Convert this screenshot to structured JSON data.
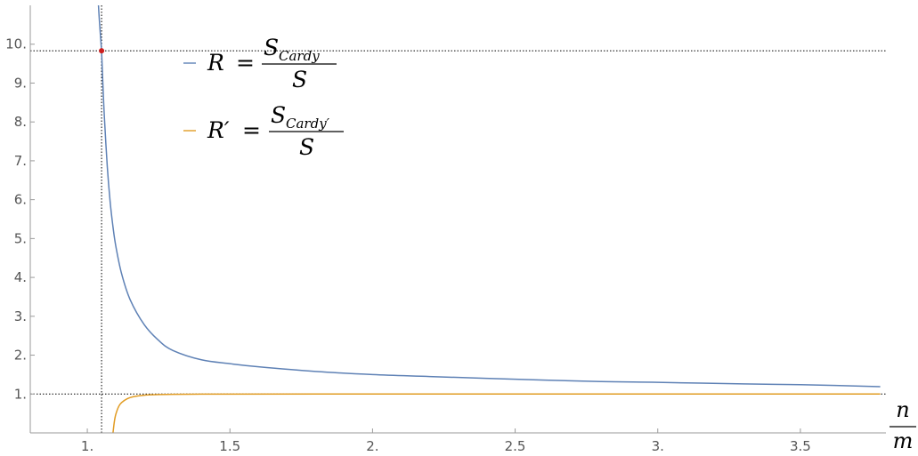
{
  "chart_data": {
    "type": "line",
    "title": "",
    "xlabel": {
      "numerator": "n",
      "denominator": "m"
    },
    "ylabel": "",
    "xlim": [
      0.8,
      3.8
    ],
    "ylim": [
      0,
      11
    ],
    "x_ticks": [
      {
        "value": 1.0,
        "label": "1."
      },
      {
        "value": 1.5,
        "label": "1.5"
      },
      {
        "value": 2.0,
        "label": "2."
      },
      {
        "value": 2.5,
        "label": "2.5"
      },
      {
        "value": 3.0,
        "label": "3."
      },
      {
        "value": 3.5,
        "label": "3.5"
      }
    ],
    "y_ticks": [
      {
        "value": 1,
        "label": "1."
      },
      {
        "value": 2,
        "label": "2."
      },
      {
        "value": 3,
        "label": "3."
      },
      {
        "value": 4,
        "label": "4."
      },
      {
        "value": 5,
        "label": "5."
      },
      {
        "value": 6,
        "label": "6."
      },
      {
        "value": 7,
        "label": "7."
      },
      {
        "value": 8,
        "label": "8."
      },
      {
        "value": 9,
        "label": "9."
      },
      {
        "value": 10,
        "label": "10."
      }
    ],
    "legend_position": "top-left",
    "series": [
      {
        "name": "R = S_Cardy / S",
        "legend": {
          "lhs": "R",
          "numerator_base": "S",
          "numerator_sub": "Cardy",
          "denominator": "S"
        },
        "color": "#5E81B5",
        "x": [
          1.05,
          1.055,
          1.06,
          1.07,
          1.08,
          1.09,
          1.1,
          1.12,
          1.15,
          1.2,
          1.25,
          1.3,
          1.4,
          1.5,
          1.6,
          1.8,
          2.0,
          2.2,
          2.5,
          2.8,
          3.0,
          3.3,
          3.5,
          3.78
        ],
        "y": [
          9.83,
          8.9,
          8.1,
          6.85,
          5.95,
          5.3,
          4.8,
          4.1,
          3.43,
          2.78,
          2.38,
          2.12,
          1.88,
          1.78,
          1.7,
          1.58,
          1.5,
          1.45,
          1.38,
          1.32,
          1.3,
          1.26,
          1.24,
          1.19
        ]
      },
      {
        "name": "R' = S_Cardy' / S",
        "legend": {
          "lhs": "R′",
          "numerator_base": "S",
          "numerator_sub": "Cardy′",
          "denominator": "S"
        },
        "color": "#E19C24",
        "x": [
          1.09,
          1.095,
          1.1,
          1.11,
          1.12,
          1.14,
          1.16,
          1.2,
          1.25,
          1.3,
          1.4,
          1.5,
          2.0,
          2.5,
          3.0,
          3.5,
          3.78
        ],
        "y": [
          0.0,
          0.3,
          0.48,
          0.68,
          0.78,
          0.88,
          0.93,
          0.97,
          0.985,
          0.993,
          0.997,
          0.999,
          1.0,
          1.0,
          1.0,
          1.0,
          1.0
        ]
      }
    ],
    "reference_lines": [
      {
        "orientation": "horizontal",
        "value": 1,
        "style": "dotted",
        "color": "#000000"
      },
      {
        "orientation": "horizontal",
        "value": 9.83,
        "style": "dotted",
        "color": "#000000"
      },
      {
        "orientation": "vertical",
        "value": 1.05,
        "style": "dotted",
        "color": "#000000"
      }
    ],
    "marked_points": [
      {
        "x": 1.05,
        "y": 9.83,
        "color": "#CC1F1F"
      }
    ],
    "grid": false
  }
}
